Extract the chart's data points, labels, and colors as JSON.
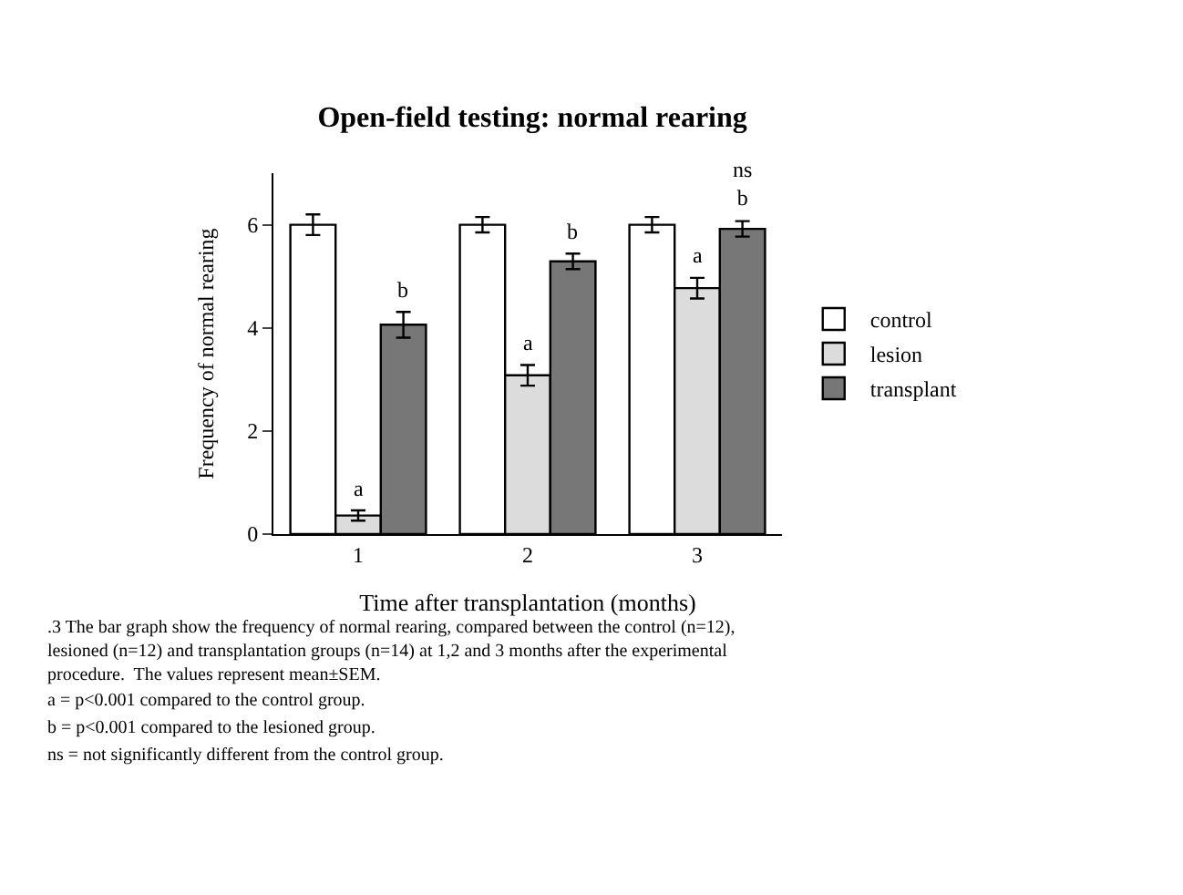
{
  "chart_data": {
    "type": "bar",
    "title": "Open-field testing: normal rearing",
    "xlabel": "Time after transplantation (months)",
    "ylabel": "Frequency of normal rearing",
    "categories": [
      "1",
      "2",
      "3"
    ],
    "series": [
      {
        "name": "control",
        "color": "#ffffff",
        "values": [
          6.0,
          6.0,
          6.0
        ],
        "errors": [
          0.2,
          0.15,
          0.15
        ]
      },
      {
        "name": "lesion",
        "color": "#dcdcdc",
        "values": [
          0.36,
          3.08,
          4.77
        ],
        "errors": [
          0.1,
          0.2,
          0.2
        ],
        "value_labels": [
          "a",
          "a",
          "a"
        ]
      },
      {
        "name": "transplant",
        "color": "#777777",
        "values": [
          4.06,
          5.29,
          5.92
        ],
        "errors": [
          0.25,
          0.15,
          0.15
        ],
        "value_labels": [
          "b",
          "b",
          "ns\nb"
        ]
      }
    ],
    "ylim": [
      0,
      7
    ],
    "yticks": [
      0,
      2,
      4,
      6
    ],
    "legend": "right",
    "annotations": [
      ".3 The bar graph show the frequency of normal rearing, compared between the control (n=12), lesioned (n=12) and transplantation groups (n=14) at 1,2 and 3 months after the experimental procedure.  The values represent mean±SEM.",
      "a = p<0.001 compared to the control group.",
      "b = p<0.001 compared to the lesioned group.",
      "ns = not significantly different from the control group."
    ]
  }
}
